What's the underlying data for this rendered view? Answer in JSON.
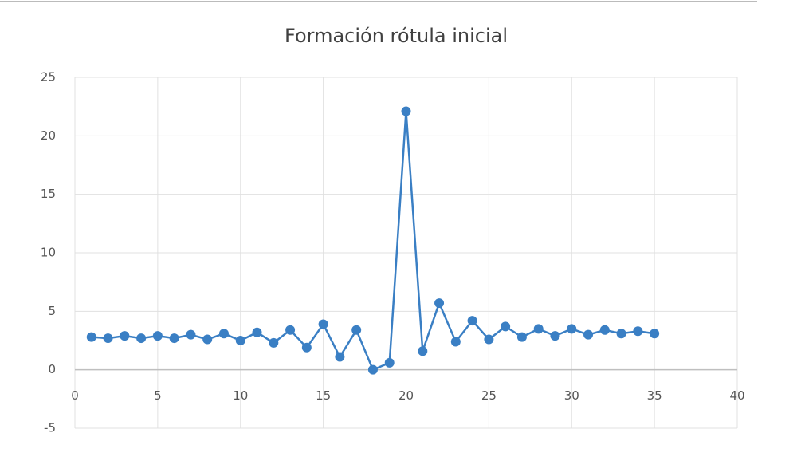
{
  "chart_data": {
    "type": "line",
    "title": "Formación  rótula inicial",
    "x": [
      1,
      2,
      3,
      4,
      5,
      6,
      7,
      8,
      9,
      10,
      11,
      12,
      13,
      14,
      15,
      16,
      17,
      18,
      19,
      20,
      21,
      22,
      23,
      24,
      25,
      26,
      27,
      28,
      29,
      30,
      31,
      32,
      33,
      34,
      35
    ],
    "values": [
      2.8,
      2.7,
      2.9,
      2.7,
      2.9,
      2.7,
      3.0,
      2.6,
      3.1,
      2.5,
      3.2,
      2.3,
      3.4,
      1.9,
      3.9,
      1.1,
      3.4,
      0,
      0.6,
      22.1,
      1.6,
      5.7,
      2.4,
      4.2,
      2.6,
      3.7,
      2.8,
      3.5,
      2.9,
      3.5,
      3.0,
      3.4,
      3.1,
      3.3,
      3.1
    ],
    "color": "#3a7fc4",
    "xlim": [
      0,
      40
    ],
    "xticks": [
      0,
      5,
      10,
      15,
      20,
      25,
      30,
      35,
      40
    ],
    "ylim": [
      -5,
      25
    ],
    "yticks": [
      -5,
      0,
      5,
      10,
      15,
      20,
      25
    ],
    "grid": true
  }
}
